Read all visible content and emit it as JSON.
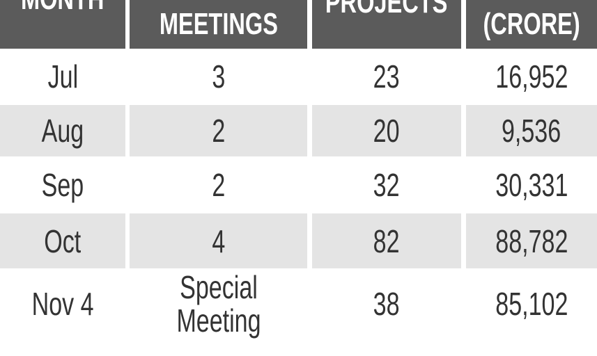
{
  "table": {
    "header": [
      "MONTH",
      "MEETINGS",
      "PROJECTS",
      "(CRORE)"
    ],
    "rows": [
      [
        "Jul",
        "3",
        "23",
        "16,952"
      ],
      [
        "Aug",
        "2",
        "20",
        "9,536"
      ],
      [
        "Sep",
        "2",
        "32",
        "30,331"
      ],
      [
        "Oct",
        "4",
        "82",
        "88,782"
      ],
      [
        "Nov 4",
        "Special Meeting",
        "38",
        "85,102"
      ]
    ]
  }
}
